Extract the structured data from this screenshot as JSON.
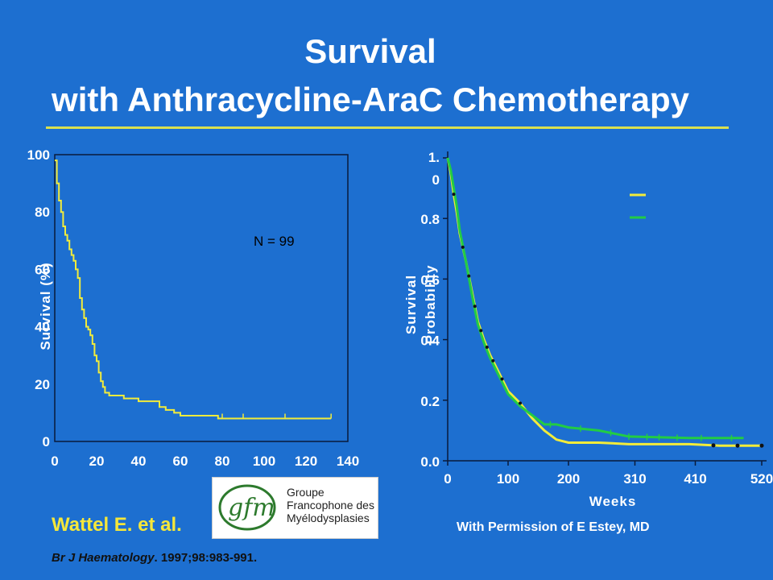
{
  "slide": {
    "title_line1": "Survival",
    "title_line2": "with Anthracycline-AraC Chemotherapy",
    "author": "Wattel E. et al.",
    "journal_name": "Br J Haematology",
    "journal_rest": ". 1997;98:983-991.",
    "permission": "With Permission of E Estey, MD",
    "logo": {
      "mark": "gfm",
      "line1": "Groupe",
      "line2": "Francophone des",
      "line3": "Myélodysplasies"
    },
    "colors": {
      "background": "#1d6fd0",
      "yellow": "#f2ec3a",
      "green": "#22cc44"
    }
  },
  "chart_data": [
    {
      "type": "line",
      "title": "",
      "xlabel": "",
      "ylabel": "Survival (%)",
      "xlim": [
        0,
        140
      ],
      "ylim": [
        0,
        100
      ],
      "x_ticks": [
        "0",
        "20",
        "40",
        "60",
        "80",
        "100",
        "120",
        "140"
      ],
      "y_ticks": [
        "0",
        "20",
        "40",
        "60",
        "80",
        "100"
      ],
      "annotation": "N = 99",
      "series": [
        {
          "color": "#f2ec3a",
          "step": true,
          "x": [
            0,
            1,
            2,
            3,
            4,
            5,
            6,
            7,
            8,
            9,
            10,
            11,
            12,
            13,
            14,
            15,
            16,
            17,
            18,
            19,
            20,
            21,
            22,
            23,
            24,
            26,
            30,
            33,
            36,
            40,
            45,
            50,
            53,
            57,
            60,
            70,
            78,
            90,
            110,
            132
          ],
          "y": [
            98,
            90,
            84,
            80,
            75,
            72,
            70,
            67,
            65,
            63,
            60,
            57,
            50,
            46,
            43,
            40,
            39,
            37,
            34,
            30,
            28,
            24,
            21,
            19,
            17,
            16,
            16,
            15,
            15,
            14,
            14,
            12,
            11,
            10,
            9,
            9,
            8,
            8,
            8,
            8
          ]
        }
      ]
    },
    {
      "type": "line",
      "title": "",
      "xlabel": "Weeks",
      "ylabel": "Survival Probability",
      "xlim": [
        0,
        520
      ],
      "ylim": [
        0,
        1.0
      ],
      "x_ticks": [
        "0",
        "100",
        "200",
        "310",
        "410",
        "520"
      ],
      "y_ticks": [
        "0.0",
        "0.2",
        "0.4",
        "0.6",
        "0.8",
        "1.0"
      ],
      "y_tick_display": [
        "0.0",
        "0.2",
        "0.4",
        "0.6",
        "0.8",
        "1.\n0"
      ],
      "legend_placement": "top-right",
      "series": [
        {
          "color": "#f2ec3a",
          "x": [
            0,
            5,
            10,
            15,
            20,
            30,
            40,
            50,
            60,
            70,
            80,
            90,
            100,
            110,
            120,
            140,
            160,
            180,
            200,
            250,
            300,
            400,
            450,
            520
          ],
          "y": [
            1.0,
            0.95,
            0.88,
            0.82,
            0.75,
            0.66,
            0.56,
            0.46,
            0.4,
            0.35,
            0.31,
            0.27,
            0.23,
            0.21,
            0.19,
            0.14,
            0.1,
            0.07,
            0.06,
            0.06,
            0.055,
            0.055,
            0.05,
            0.05
          ]
        },
        {
          "color": "#22cc44",
          "x": [
            0,
            5,
            10,
            15,
            20,
            30,
            40,
            50,
            60,
            70,
            80,
            90,
            100,
            110,
            120,
            140,
            160,
            180,
            200,
            250,
            300,
            400,
            450,
            490
          ],
          "y": [
            1.0,
            0.96,
            0.9,
            0.84,
            0.76,
            0.66,
            0.55,
            0.45,
            0.39,
            0.34,
            0.3,
            0.26,
            0.22,
            0.2,
            0.18,
            0.15,
            0.12,
            0.12,
            0.11,
            0.1,
            0.08,
            0.075,
            0.075,
            0.075
          ]
        }
      ]
    }
  ]
}
